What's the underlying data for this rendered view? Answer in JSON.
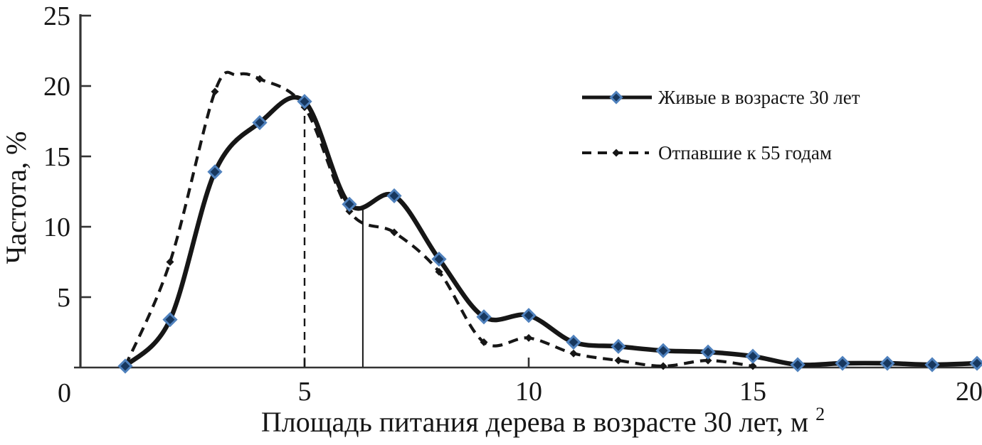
{
  "figure": {
    "y_axis_title": "Частота, %",
    "x_axis_title_main": "Площадь питания дерева в возрасте 30 лет, м",
    "x_axis_title_sup": "2",
    "origin_label": "0"
  },
  "legend": {
    "items": [
      {
        "label": "Живые в возрасте 30 лет",
        "style": "solid",
        "marker": "diamond-blue"
      },
      {
        "label": "Отпавшие к 55 годам",
        "style": "dashed",
        "marker": "diamond-black"
      }
    ]
  },
  "colors": {
    "ink": "#161616",
    "axis": "#333333",
    "marker_fill": "#17375e",
    "marker_stroke": "#4f81bd",
    "background": "#ffffff"
  },
  "chart_data": {
    "type": "line",
    "title": "",
    "xlabel": "Площадь питания дерева в возрасте 30 лет, м²",
    "ylabel": "Частота, %",
    "xlim": [
      0,
      20
    ],
    "ylim": [
      0,
      25
    ],
    "x_ticks": [
      0,
      5,
      10,
      15,
      20
    ],
    "y_ticks": [
      0,
      5,
      10,
      15,
      20,
      25
    ],
    "grid": false,
    "legend_position": "upper right",
    "series": [
      {
        "name": "Живые в возрасте 30 лет",
        "line": "solid",
        "marker": "diamond-blue",
        "x": [
          1,
          2,
          3,
          4,
          5,
          6,
          7,
          8,
          9,
          10,
          11,
          12,
          13,
          14,
          15,
          16,
          17,
          18,
          19,
          20
        ],
        "values": [
          0.1,
          3.4,
          13.9,
          17.4,
          18.9,
          11.6,
          12.2,
          7.7,
          3.6,
          3.7,
          1.8,
          1.5,
          1.2,
          1.1,
          0.8,
          0.2,
          0.3,
          0.3,
          0.2,
          0.3
        ]
      },
      {
        "name": "Отпавшие к 55 годам",
        "line": "dashed",
        "marker": "diamond-black",
        "x": [
          1,
          2,
          3,
          4,
          5,
          6,
          7,
          8,
          9,
          10,
          11,
          12,
          13,
          14,
          15
        ],
        "values": [
          0.1,
          7.5,
          19.6,
          20.5,
          18.5,
          11.1,
          9.6,
          6.8,
          1.8,
          2.1,
          1.0,
          0.5,
          0.1,
          0.5,
          0.1
        ],
        "peak": {
          "x": 3.5,
          "y": 20.8
        }
      }
    ],
    "reference_lines": [
      {
        "type": "vertical",
        "style": "dashed",
        "x": 5.0,
        "y_top": 18.4
      },
      {
        "type": "vertical",
        "style": "solid",
        "x": 6.3,
        "y_top": 11.4
      }
    ]
  }
}
